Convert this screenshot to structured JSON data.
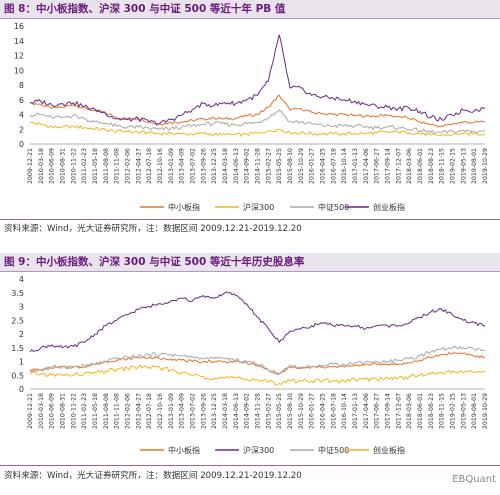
{
  "figures": [
    {
      "title": "图 8：中小板指数、沪深 300 与中证 500 等近十年 PB 值",
      "source": "资料来源：Wind，光大证券研究所，注：数据区间 2009.12.21-2019.12.20"
    },
    {
      "title": "图 9：中小板指数、沪深 300 与中证 500 等近十年历史股息率",
      "source": "资料来源：Wind，光大证券研究所，注：数据区间 2009.12.21-2019.12.20"
    }
  ],
  "watermark": "EBQuant",
  "chart_data": [
    {
      "type": "line",
      "title": "图 8：中小板指数、沪深 300 与中证 500 等近十年 PB 值",
      "xlabel": "",
      "ylabel": "",
      "ylim": [
        0,
        16
      ],
      "yticks": [
        0,
        2,
        4,
        6,
        8,
        10,
        12,
        14,
        16
      ],
      "grid": false,
      "legend": "bottom",
      "x": [
        "2009-12-21",
        "2010-03-18",
        "2010-06-09",
        "2010-08-31",
        "2010-11-22",
        "2011-02-23",
        "2011-05-18",
        "2011-08-08",
        "2011-11-08",
        "2012-02-06",
        "2012-04-27",
        "2012-07-18",
        "2012-10-16",
        "2013-01-09",
        "2013-04-09",
        "2013-07-02",
        "2013-09-26",
        "2013-12-25",
        "2014-03-18",
        "2014-06-13",
        "2014-09-02",
        "2014-11-28",
        "2015-02-27",
        "2015-05-25",
        "2015-08-10",
        "2015-10-29",
        "2016-01-27",
        "2016-04-25",
        "2016-07-18",
        "2016-10-14",
        "2017-01-13",
        "2017-04-06",
        "2017-06-27",
        "2017-09-14",
        "2017-12-07",
        "2018-03-06",
        "2018-06-01",
        "2018-08-23",
        "2018-11-15",
        "2019-02-15",
        "2019-05-13",
        "2019-08-01",
        "2019-10-29"
      ],
      "series": [
        {
          "name": "中小板指",
          "color": "#e0762a",
          "values": [
            5.5,
            5.4,
            4.8,
            5.0,
            5.3,
            4.9,
            4.5,
            4.2,
            3.6,
            3.4,
            3.5,
            3.0,
            2.7,
            2.9,
            3.0,
            3.2,
            3.4,
            3.5,
            3.4,
            3.5,
            3.8,
            4.0,
            5.0,
            6.6,
            4.6,
            4.8,
            4.3,
            4.1,
            4.0,
            4.0,
            3.9,
            3.8,
            3.8,
            3.9,
            3.7,
            3.5,
            3.0,
            2.6,
            2.4,
            2.7,
            3.0,
            2.9,
            3.1
          ]
        },
        {
          "name": "沪深300",
          "color": "#f2b51a",
          "values": [
            2.9,
            2.7,
            2.3,
            2.3,
            2.4,
            2.2,
            2.1,
            1.9,
            1.7,
            1.7,
            1.6,
            1.5,
            1.4,
            1.5,
            1.4,
            1.3,
            1.4,
            1.3,
            1.25,
            1.25,
            1.3,
            1.5,
            1.8,
            2.0,
            1.5,
            1.5,
            1.4,
            1.35,
            1.35,
            1.4,
            1.4,
            1.45,
            1.5,
            1.6,
            1.6,
            1.55,
            1.4,
            1.25,
            1.2,
            1.3,
            1.4,
            1.35,
            1.4
          ]
        },
        {
          "name": "中证500",
          "color": "#a8a8a8",
          "values": [
            3.9,
            4.0,
            3.6,
            3.6,
            3.9,
            3.4,
            3.0,
            2.8,
            2.4,
            2.3,
            2.3,
            2.1,
            2.0,
            2.1,
            2.3,
            2.5,
            2.6,
            2.8,
            2.7,
            2.6,
            2.8,
            2.9,
            3.6,
            4.6,
            3.0,
            3.0,
            2.7,
            2.5,
            2.4,
            2.5,
            2.4,
            2.3,
            2.2,
            2.3,
            2.2,
            2.0,
            1.8,
            1.6,
            1.5,
            1.7,
            1.8,
            1.7,
            1.8
          ]
        },
        {
          "name": "创业板指",
          "color": "#6a2a8a",
          "values": [
            5.6,
            5.8,
            5.3,
            5.5,
            5.6,
            5.1,
            4.7,
            4.1,
            3.4,
            3.3,
            3.4,
            3.0,
            2.8,
            3.3,
            3.9,
            4.7,
            5.5,
            5.2,
            5.6,
            5.5,
            6.0,
            6.6,
            8.5,
            14.8,
            7.6,
            7.6,
            6.6,
            6.4,
            6.2,
            6.0,
            5.8,
            5.4,
            5.1,
            5.0,
            4.8,
            4.9,
            4.4,
            3.6,
            3.3,
            3.9,
            4.6,
            4.5,
            4.9
          ]
        }
      ]
    },
    {
      "type": "line",
      "title": "图 9：中小板指数、沪深 300 与中证 500 等近十年历史股息率",
      "xlabel": "",
      "ylabel": "",
      "ylim": [
        0,
        4
      ],
      "yticks": [
        0,
        0.5,
        1,
        1.5,
        2,
        2.5,
        3,
        3.5,
        4
      ],
      "grid": false,
      "legend": "bottom",
      "x": [
        "2009-12-21",
        "2010-03-18",
        "2010-06-09",
        "2010-08-31",
        "2010-11-22",
        "2011-02-23",
        "2011-05-18",
        "2011-08-08",
        "2011-11-08",
        "2012-02-06",
        "2012-04-27",
        "2012-07-18",
        "2012-10-16",
        "2013-01-09",
        "2013-04-09",
        "2013-07-02",
        "2013-09-26",
        "2013-12-25",
        "2014-03-18",
        "2014-06-13",
        "2014-09-02",
        "2014-11-28",
        "2015-02-27",
        "2015-05-25",
        "2015-08-10",
        "2015-10-29",
        "2016-01-27",
        "2016-04-25",
        "2016-07-18",
        "2016-10-14",
        "2017-01-13",
        "2017-04-06",
        "2017-06-27",
        "2017-09-14",
        "2017-12-07",
        "2018-03-06",
        "2018-06-01",
        "2018-08-23",
        "2018-11-15",
        "2019-02-15",
        "2019-05-13",
        "2019-08-01",
        "2019-10-29"
      ],
      "series": [
        {
          "name": "中小板指",
          "color": "#e0762a",
          "values": [
            0.7,
            0.7,
            0.75,
            0.8,
            0.8,
            0.8,
            0.9,
            1.0,
            1.05,
            1.1,
            1.15,
            1.15,
            1.1,
            1.1,
            1.05,
            1.0,
            1.0,
            1.0,
            1.0,
            1.0,
            0.95,
            0.85,
            0.7,
            0.55,
            0.8,
            0.75,
            0.8,
            0.8,
            0.8,
            0.8,
            0.85,
            0.9,
            0.9,
            0.9,
            0.9,
            0.95,
            1.05,
            1.15,
            1.25,
            1.3,
            1.3,
            1.2,
            1.15
          ]
        },
        {
          "name": "沪深300",
          "color": "#6a2a8a",
          "values": [
            1.35,
            1.5,
            1.6,
            1.5,
            1.55,
            1.7,
            2.0,
            2.3,
            2.5,
            2.7,
            2.9,
            3.0,
            3.1,
            3.2,
            3.3,
            3.2,
            3.4,
            3.3,
            3.5,
            3.4,
            3.1,
            2.6,
            2.2,
            1.7,
            2.1,
            2.2,
            2.3,
            2.4,
            2.3,
            2.3,
            2.3,
            2.2,
            2.3,
            2.3,
            2.3,
            2.4,
            2.6,
            2.8,
            2.9,
            2.7,
            2.5,
            2.4,
            2.3
          ]
        },
        {
          "name": "中证500",
          "color": "#a8a8a8",
          "values": [
            0.65,
            0.7,
            0.8,
            0.8,
            0.8,
            0.85,
            0.9,
            1.0,
            1.1,
            1.15,
            1.2,
            1.25,
            1.25,
            1.25,
            1.2,
            1.15,
            1.1,
            1.1,
            1.1,
            1.05,
            1.0,
            0.9,
            0.7,
            0.55,
            0.85,
            0.8,
            0.8,
            0.85,
            0.9,
            0.9,
            0.95,
            1.0,
            1.0,
            1.0,
            1.05,
            1.1,
            1.2,
            1.35,
            1.45,
            1.5,
            1.5,
            1.45,
            1.4
          ]
        },
        {
          "name": "创业板指",
          "color": "#f2b51a",
          "values": [
            0.55,
            0.55,
            0.5,
            0.5,
            0.5,
            0.55,
            0.6,
            0.65,
            0.7,
            0.75,
            0.8,
            0.8,
            0.75,
            0.7,
            0.6,
            0.5,
            0.45,
            0.4,
            0.4,
            0.4,
            0.35,
            0.35,
            0.25,
            0.2,
            0.3,
            0.3,
            0.3,
            0.3,
            0.3,
            0.3,
            0.35,
            0.35,
            0.35,
            0.4,
            0.4,
            0.45,
            0.5,
            0.55,
            0.6,
            0.65,
            0.6,
            0.6,
            0.65
          ]
        }
      ]
    }
  ]
}
